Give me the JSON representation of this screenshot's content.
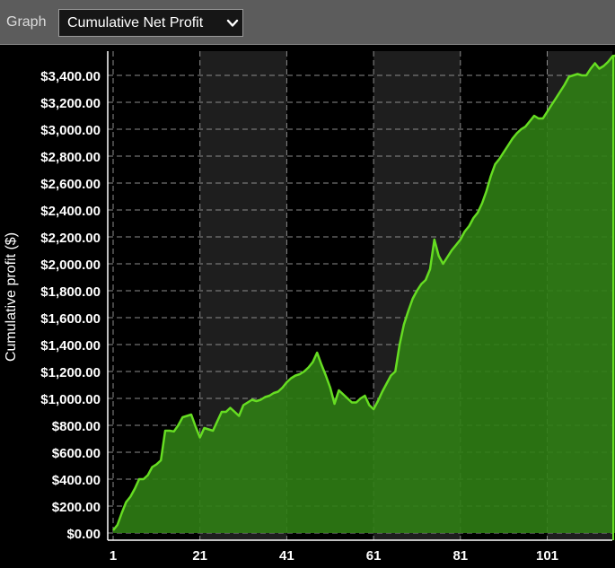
{
  "toolbar": {
    "graph_label": "Graph",
    "selected_graph": "Cumulative Net Profit",
    "dropdown_icon": "chevron-down-icon"
  },
  "colors": {
    "background": "#000000",
    "band": "#1e1e1e",
    "line": "#66dd22",
    "fill": "#2f7d14",
    "grid": "#8c8c8c",
    "toolbar": "#5c5c5c"
  },
  "chart_data": {
    "type": "area",
    "ylabel": "Cumulative profit ($)",
    "xlabel": "",
    "title": "",
    "ylim": [
      -20,
      3600
    ],
    "xlim": [
      1,
      117
    ],
    "yticks": [
      0,
      200,
      400,
      600,
      800,
      1000,
      1200,
      1400,
      1600,
      1800,
      2000,
      2200,
      2400,
      2600,
      2800,
      3000,
      3200,
      3400
    ],
    "ytick_labels": [
      "$0.00",
      "$200.00",
      "$400.00",
      "$600.00",
      "$800.00",
      "$1,000.00",
      "$1,200.00",
      "$1,400.00",
      "$1,600.00",
      "$1,800.00",
      "$2,000.00",
      "$2,200.00",
      "$2,400.00",
      "$2,600.00",
      "$2,800.00",
      "$3,000.00",
      "$3,200.00",
      "$3,400.00"
    ],
    "xticks": [
      1,
      21,
      41,
      61,
      81,
      101
    ],
    "xtick_labels": [
      "1",
      "21",
      "41",
      "61",
      "81",
      "101"
    ],
    "grid": true,
    "shaded_bands": [
      [
        21,
        41
      ],
      [
        61,
        81
      ],
      [
        101,
        117
      ]
    ],
    "series": [
      {
        "x": [
          1,
          2,
          3,
          4,
          5,
          6,
          7,
          8,
          9,
          10,
          11,
          12,
          13,
          14,
          15,
          16,
          17,
          18,
          19,
          20,
          21,
          22,
          23,
          24,
          25,
          26,
          27,
          28,
          29,
          30,
          31,
          32,
          33,
          34,
          35,
          36,
          37,
          38,
          39,
          40,
          41,
          42,
          43,
          44,
          45,
          46,
          47,
          48,
          49,
          50,
          51,
          52,
          53,
          54,
          55,
          56,
          57,
          58,
          59,
          60,
          61,
          62,
          63,
          64,
          65,
          66,
          67,
          68,
          69,
          70,
          71,
          72,
          73,
          74,
          75,
          76,
          77,
          78,
          79,
          80,
          81,
          82,
          83,
          84,
          85,
          86,
          87,
          88,
          89,
          90,
          91,
          92,
          93,
          94,
          95,
          96,
          97,
          98,
          99,
          100,
          101,
          102,
          103,
          104,
          105,
          106,
          107,
          108,
          109,
          110,
          111,
          112,
          113,
          114,
          115,
          116,
          117
        ],
        "values": [
          20,
          60,
          150,
          230,
          270,
          330,
          400,
          400,
          430,
          490,
          510,
          540,
          760,
          760,
          755,
          800,
          860,
          870,
          880,
          790,
          710,
          780,
          770,
          760,
          830,
          900,
          900,
          930,
          900,
          870,
          950,
          970,
          990,
          980,
          990,
          1010,
          1020,
          1040,
          1050,
          1080,
          1120,
          1150,
          1170,
          1180,
          1200,
          1230,
          1270,
          1340,
          1250,
          1170,
          1080,
          960,
          1060,
          1030,
          1000,
          970,
          970,
          1000,
          1020,
          950,
          920,
          980,
          1050,
          1110,
          1170,
          1200,
          1400,
          1550,
          1650,
          1740,
          1800,
          1850,
          1880,
          1960,
          2180,
          2060,
          2000,
          2050,
          2100,
          2140,
          2180,
          2240,
          2280,
          2340,
          2380,
          2450,
          2540,
          2650,
          2740,
          2780,
          2830,
          2880,
          2930,
          2970,
          3000,
          3020,
          3060,
          3100,
          3080,
          3080,
          3130,
          3180,
          3230,
          3280,
          3330,
          3390,
          3400,
          3410,
          3400,
          3400,
          3450,
          3490,
          3450,
          3470,
          3500,
          3540,
          3550
        ]
      }
    ]
  }
}
